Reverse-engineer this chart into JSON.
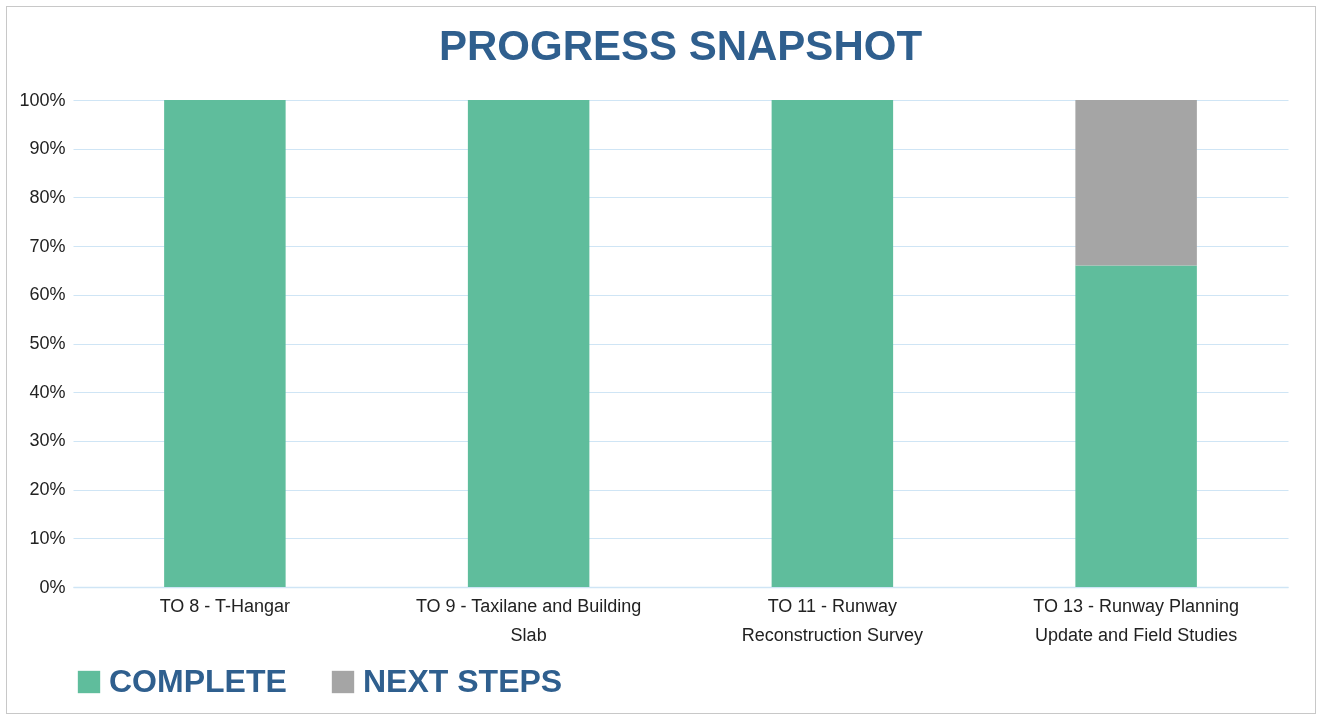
{
  "chart_data": {
    "type": "bar",
    "title": "PROGRESS SNAPSHOT",
    "categories": [
      "TO 8 - T-Hangar",
      "TO 9 - Taxilane and Building Slab",
      "TO 11 - Runway Reconstruction Survey",
      "TO 13 - Runway Planning Update and Field Studies"
    ],
    "series": [
      {
        "name": "COMPLETE",
        "color": "#5fbd9c",
        "values": [
          100,
          100,
          100,
          66
        ]
      },
      {
        "name": "NEXT STEPS",
        "color": "#a5a5a5",
        "values": [
          null,
          null,
          null,
          34
        ]
      }
    ],
    "stacked": true,
    "ylim": [
      0,
      100
    ],
    "yticks": [
      {
        "value": 0,
        "label": "0%"
      },
      {
        "value": 10,
        "label": "10%"
      },
      {
        "value": 20,
        "label": "20%"
      },
      {
        "value": 30,
        "label": "30%"
      },
      {
        "value": 40,
        "label": "40%"
      },
      {
        "value": 50,
        "label": "50%"
      },
      {
        "value": 60,
        "label": "60%"
      },
      {
        "value": 70,
        "label": "70%"
      },
      {
        "value": 80,
        "label": "80%"
      },
      {
        "value": 90,
        "label": "90%"
      },
      {
        "value": 100,
        "label": "100%"
      }
    ],
    "grid": "y",
    "legend": "bottom"
  }
}
